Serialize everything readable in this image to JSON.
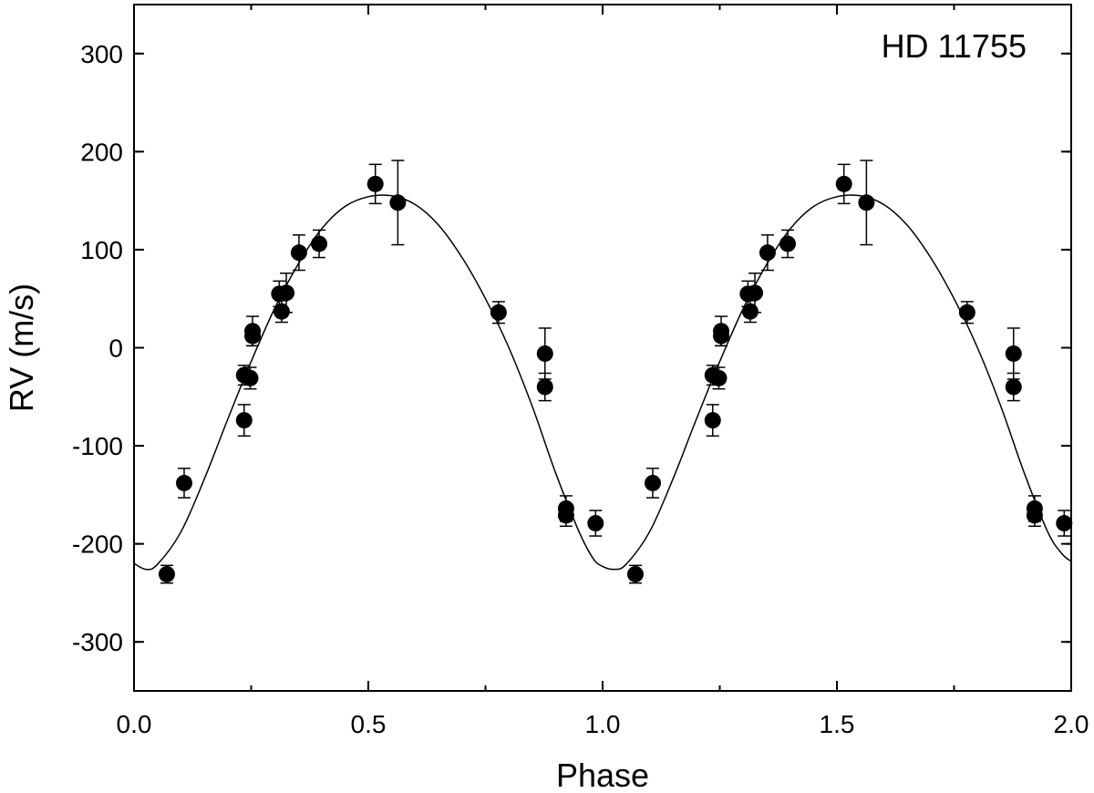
{
  "chart_data": {
    "type": "scatter",
    "title": "HD 11755",
    "xlabel": "Phase",
    "ylabel": "RV (m/s)",
    "xlim": [
      0.0,
      2.0
    ],
    "ylim": [
      -350,
      350
    ],
    "x_ticks": [
      0.0,
      0.5,
      1.0,
      1.5,
      2.0
    ],
    "x_tick_labels": [
      "0.0",
      "0.5",
      "1.0",
      "1.5",
      "2.0"
    ],
    "y_ticks": [
      300,
      200,
      100,
      0,
      -100,
      -200,
      -300
    ],
    "y_tick_labels": [
      "300",
      "200",
      "100",
      "0",
      "-100",
      "-200",
      "-300"
    ],
    "grid": false,
    "legend": "none",
    "colors": {
      "points": "#000000",
      "fit": "#000000",
      "axes": "#000000"
    },
    "series": [
      {
        "kind": "points-with-errorbars",
        "points": [
          {
            "x": 0.07,
            "y": -231,
            "err": 9
          },
          {
            "x": 0.107,
            "y": -138,
            "err": 15
          },
          {
            "x": 0.235,
            "y": -74,
            "err": 16
          },
          {
            "x": 0.235,
            "y": -28,
            "err": 10
          },
          {
            "x": 0.248,
            "y": -31,
            "err": 11
          },
          {
            "x": 0.253,
            "y": 17,
            "err": 15
          },
          {
            "x": 0.253,
            "y": 12,
            "err": 10
          },
          {
            "x": 0.31,
            "y": 55,
            "err": 13
          },
          {
            "x": 0.315,
            "y": 37,
            "err": 11
          },
          {
            "x": 0.325,
            "y": 56,
            "err": 20
          },
          {
            "x": 0.352,
            "y": 97,
            "err": 18
          },
          {
            "x": 0.395,
            "y": 106,
            "err": 14
          },
          {
            "x": 0.515,
            "y": 167,
            "err": 20
          },
          {
            "x": 0.563,
            "y": 148,
            "err": 43
          },
          {
            "x": 0.778,
            "y": 36,
            "err": 11
          },
          {
            "x": 0.877,
            "y": -6,
            "err": 26
          },
          {
            "x": 0.877,
            "y": -40,
            "err": 14
          },
          {
            "x": 0.922,
            "y": -164,
            "err": 13
          },
          {
            "x": 0.922,
            "y": -171,
            "err": 11
          },
          {
            "x": 0.985,
            "y": -179,
            "err": 13
          },
          {
            "x": 1.07,
            "y": -231,
            "err": 9
          },
          {
            "x": 1.107,
            "y": -138,
            "err": 15
          },
          {
            "x": 1.235,
            "y": -74,
            "err": 16
          },
          {
            "x": 1.235,
            "y": -28,
            "err": 10
          },
          {
            "x": 1.248,
            "y": -31,
            "err": 11
          },
          {
            "x": 1.253,
            "y": 17,
            "err": 15
          },
          {
            "x": 1.253,
            "y": 12,
            "err": 10
          },
          {
            "x": 1.31,
            "y": 55,
            "err": 13
          },
          {
            "x": 1.315,
            "y": 37,
            "err": 11
          },
          {
            "x": 1.325,
            "y": 56,
            "err": 20
          },
          {
            "x": 1.352,
            "y": 97,
            "err": 18
          },
          {
            "x": 1.395,
            "y": 106,
            "err": 14
          },
          {
            "x": 1.515,
            "y": 167,
            "err": 20
          },
          {
            "x": 1.563,
            "y": 148,
            "err": 43
          },
          {
            "x": 1.778,
            "y": 36,
            "err": 11
          },
          {
            "x": 1.877,
            "y": -6,
            "err": 26
          },
          {
            "x": 1.877,
            "y": -40,
            "err": 14
          },
          {
            "x": 1.922,
            "y": -164,
            "err": 13
          },
          {
            "x": 1.922,
            "y": -171,
            "err": 11
          },
          {
            "x": 1.985,
            "y": -179,
            "err": 13
          }
        ]
      },
      {
        "kind": "fit-curve",
        "points": [
          {
            "x": 0.0,
            "y": -220
          },
          {
            "x": 0.025,
            "y": -226
          },
          {
            "x": 0.05,
            "y": -221
          },
          {
            "x": 0.1,
            "y": -188
          },
          {
            "x": 0.15,
            "y": -134
          },
          {
            "x": 0.2,
            "y": -73
          },
          {
            "x": 0.25,
            "y": -14
          },
          {
            "x": 0.3,
            "y": 40
          },
          {
            "x": 0.35,
            "y": 85
          },
          {
            "x": 0.4,
            "y": 121
          },
          {
            "x": 0.45,
            "y": 144
          },
          {
            "x": 0.5,
            "y": 154
          },
          {
            "x": 0.55,
            "y": 155
          },
          {
            "x": 0.6,
            "y": 146
          },
          {
            "x": 0.65,
            "y": 125
          },
          {
            "x": 0.7,
            "y": 92
          },
          {
            "x": 0.75,
            "y": 50
          },
          {
            "x": 0.8,
            "y": 0
          },
          {
            "x": 0.85,
            "y": -60
          },
          {
            "x": 0.9,
            "y": -128
          },
          {
            "x": 0.95,
            "y": -188
          },
          {
            "x": 0.98,
            "y": -215
          },
          {
            "x": 1.0,
            "y": -223
          },
          {
            "x": 1.025,
            "y": -226
          },
          {
            "x": 1.05,
            "y": -221
          },
          {
            "x": 1.1,
            "y": -188
          },
          {
            "x": 1.15,
            "y": -134
          },
          {
            "x": 1.2,
            "y": -73
          },
          {
            "x": 1.25,
            "y": -14
          },
          {
            "x": 1.3,
            "y": 40
          },
          {
            "x": 1.35,
            "y": 85
          },
          {
            "x": 1.4,
            "y": 121
          },
          {
            "x": 1.45,
            "y": 144
          },
          {
            "x": 1.5,
            "y": 154
          },
          {
            "x": 1.55,
            "y": 155
          },
          {
            "x": 1.6,
            "y": 146
          },
          {
            "x": 1.65,
            "y": 125
          },
          {
            "x": 1.7,
            "y": 92
          },
          {
            "x": 1.75,
            "y": 50
          },
          {
            "x": 1.8,
            "y": 0
          },
          {
            "x": 1.85,
            "y": -60
          },
          {
            "x": 1.9,
            "y": -128
          },
          {
            "x": 1.95,
            "y": -188
          },
          {
            "x": 1.98,
            "y": -210
          },
          {
            "x": 2.0,
            "y": -218
          }
        ]
      }
    ]
  }
}
